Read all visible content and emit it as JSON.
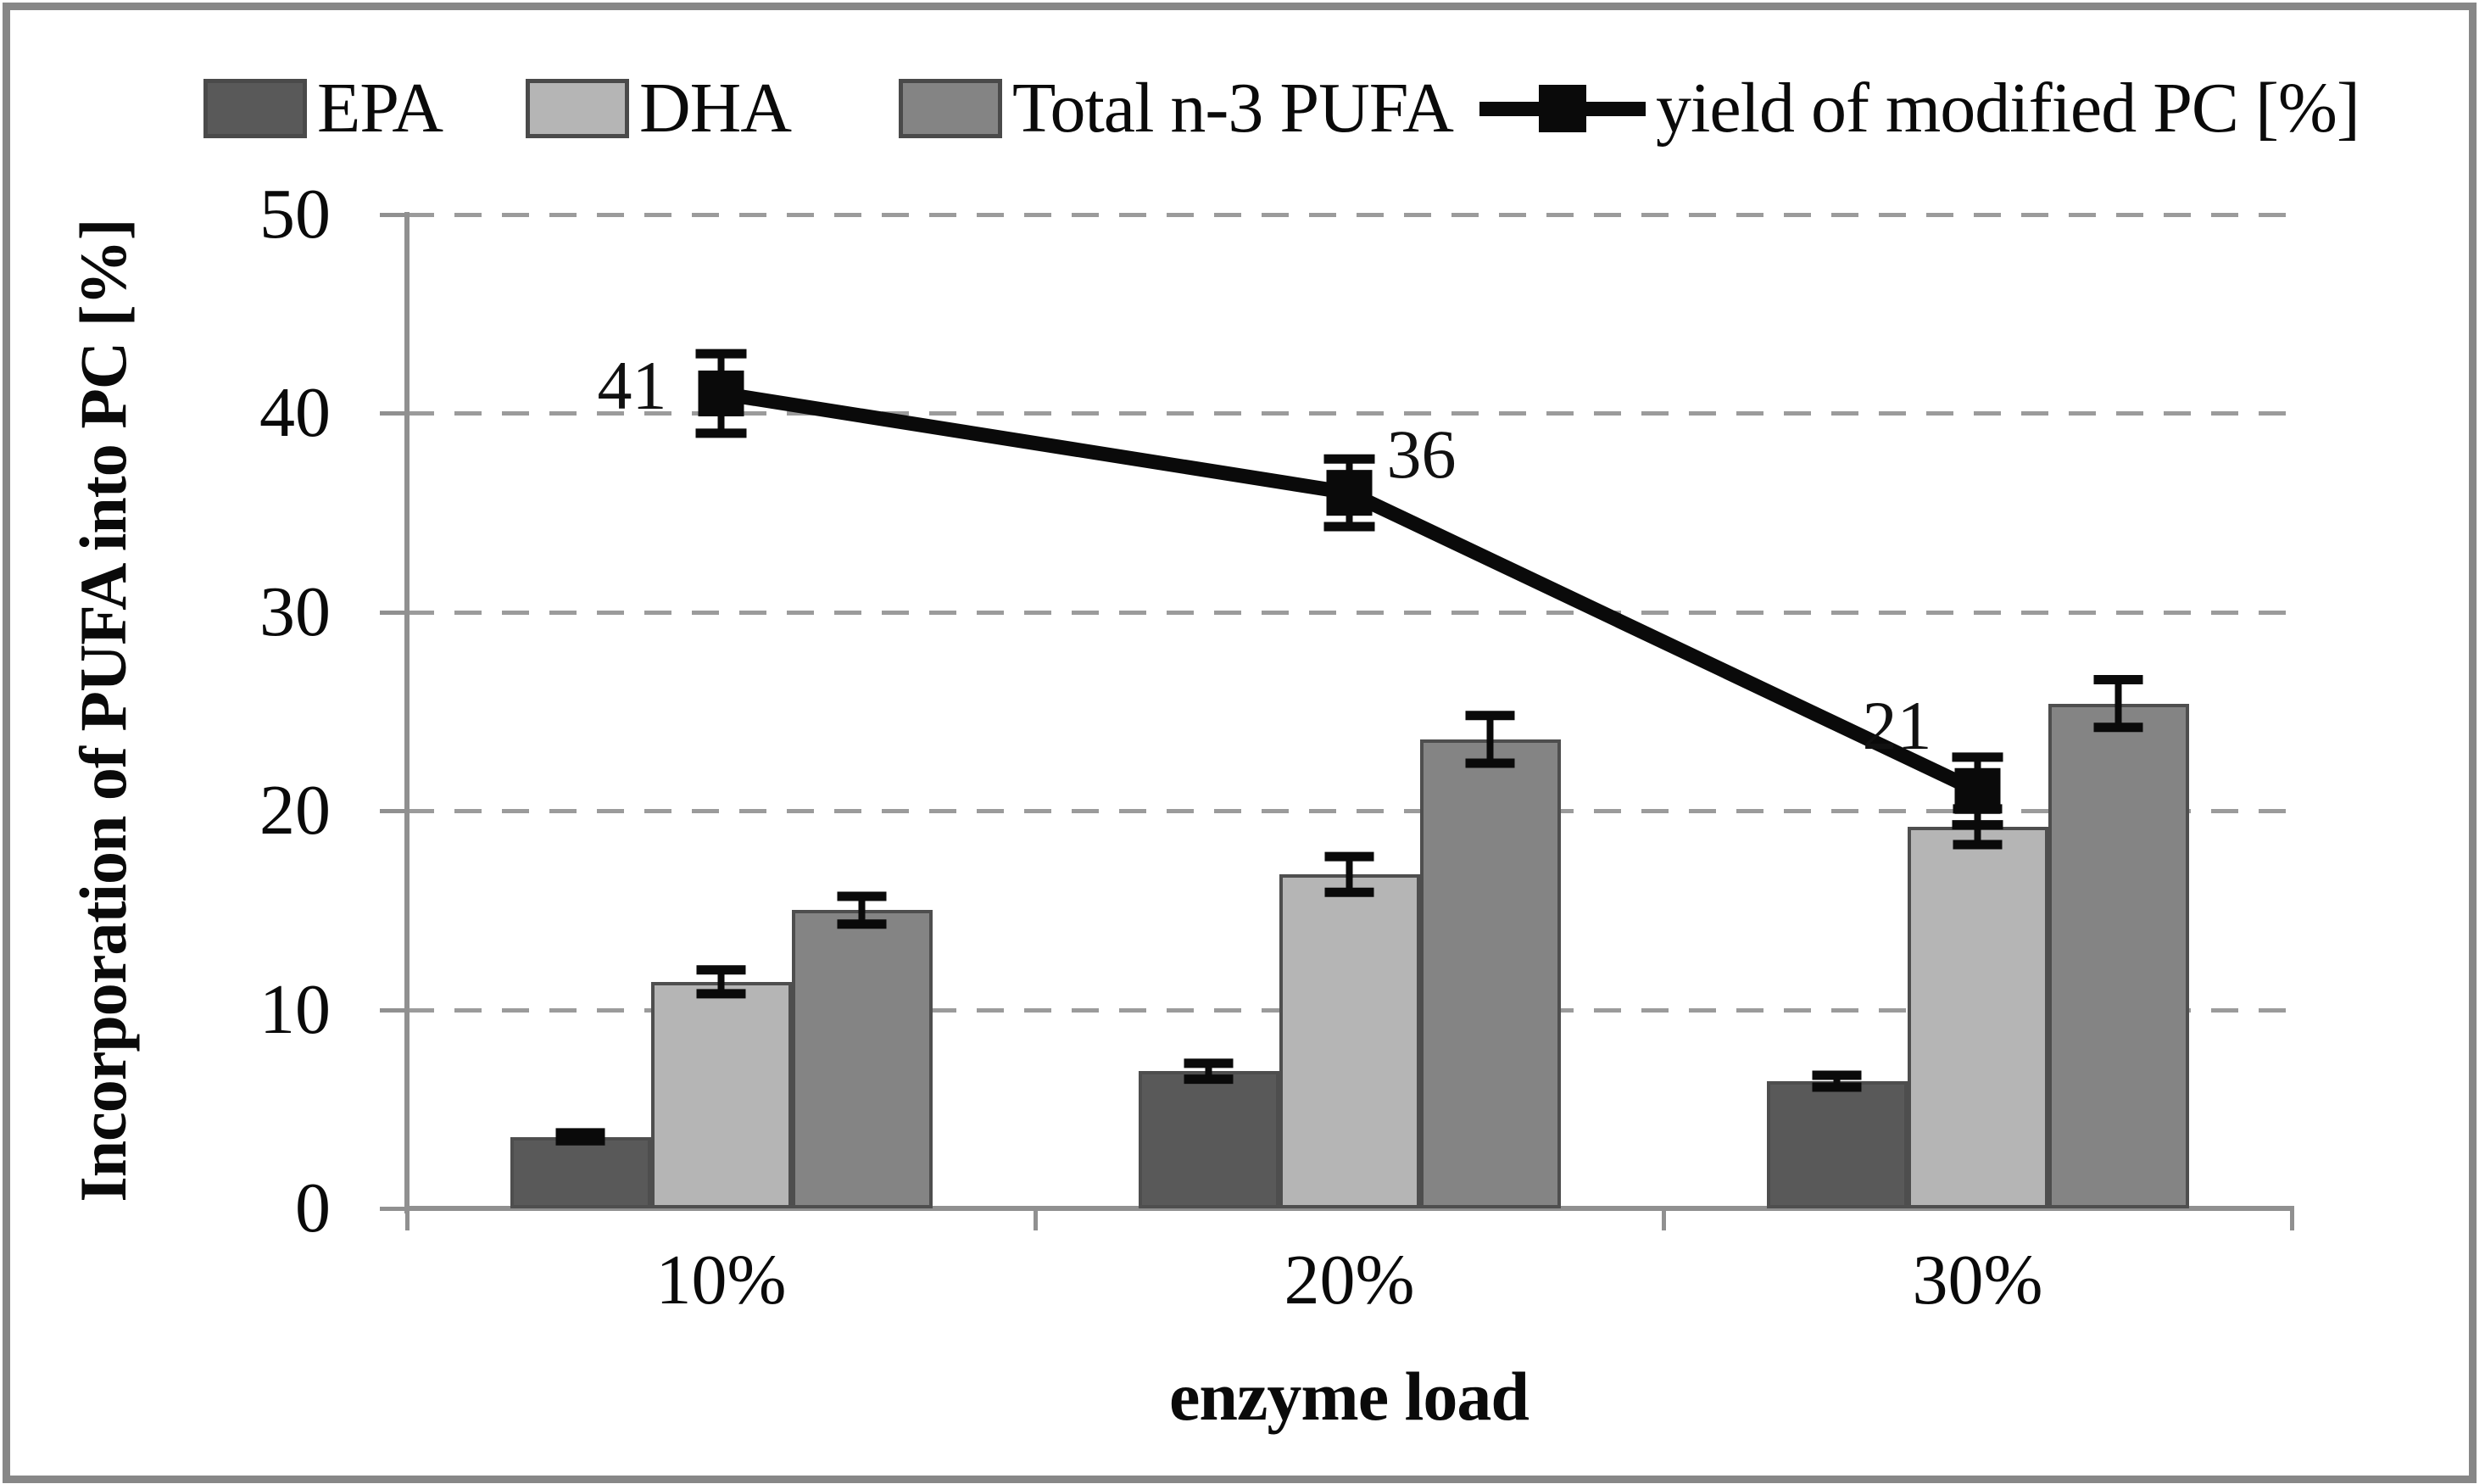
{
  "legend": {
    "items": [
      {
        "label": "EPA",
        "type": "swatch",
        "color": "#595959"
      },
      {
        "label": "DHA",
        "type": "swatch",
        "color": "#b5b5b5"
      },
      {
        "label": "Total n-3 PUFA",
        "type": "swatch",
        "color": "#848484"
      },
      {
        "label": "yield of modified PC [%]",
        "type": "line-marker",
        "color": "#0a0a0a"
      }
    ]
  },
  "chart_data": {
    "type": "bar+line",
    "categories": [
      "10%",
      "20%",
      "30%"
    ],
    "bar_series": [
      {
        "name": "EPA",
        "color": "#595959",
        "values": [
          3.6,
          6.9,
          6.4
        ],
        "errors": [
          0.2,
          0.4,
          0.3
        ]
      },
      {
        "name": "DHA",
        "color": "#b5b5b5",
        "values": [
          11.4,
          16.8,
          19.2
        ],
        "errors": [
          0.6,
          0.9,
          0.9
        ]
      },
      {
        "name": "Total n-3 PUFA",
        "color": "#848484",
        "values": [
          15.0,
          23.6,
          25.4
        ],
        "errors": [
          0.7,
          1.2,
          1.2
        ]
      }
    ],
    "line_series": {
      "name": "yield of modified PC [%]",
      "color": "#0a0a0a",
      "values": [
        41,
        36,
        21
      ],
      "errors": [
        2.0,
        1.7,
        1.7
      ],
      "point_labels": [
        "41",
        "36",
        "21"
      ]
    },
    "title": "",
    "xlabel": "enzyme load",
    "ylabel": "Incorporation of PUFA into PC [%]",
    "ylim": [
      0,
      50
    ],
    "yticks": [
      0,
      10,
      20,
      30,
      40,
      50
    ],
    "grid": "horizontal-dashed",
    "legend_position": "top",
    "axis_color": "#909090",
    "grid_color": "#9b9b9b"
  }
}
